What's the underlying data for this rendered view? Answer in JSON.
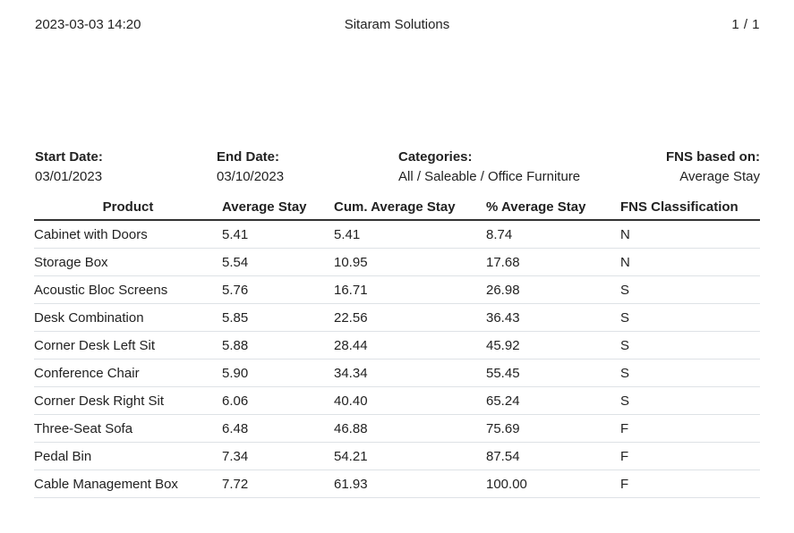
{
  "header": {
    "datetime": "2023-03-03 14:20",
    "company": "Sitaram Solutions",
    "page_indicator": "1 / 1"
  },
  "filters": {
    "start_date_label": "Start Date:",
    "start_date_value": "03/01/2023",
    "end_date_label": "End Date:",
    "end_date_value": "03/10/2023",
    "categories_label": "Categories:",
    "categories_value": "All / Saleable / Office Furniture",
    "fns_label": "FNS based on:",
    "fns_value": "Average Stay"
  },
  "table": {
    "columns": [
      "Product",
      "Average Stay",
      "Cum. Average Stay",
      "% Average Stay",
      "FNS Classification"
    ],
    "rows": [
      [
        "Cabinet with Doors",
        "5.41",
        "5.41",
        "8.74",
        "N"
      ],
      [
        "Storage Box",
        "5.54",
        "10.95",
        "17.68",
        "N"
      ],
      [
        "Acoustic Bloc Screens",
        "5.76",
        "16.71",
        "26.98",
        "S"
      ],
      [
        "Desk Combination",
        "5.85",
        "22.56",
        "36.43",
        "S"
      ],
      [
        "Corner Desk Left Sit",
        "5.88",
        "28.44",
        "45.92",
        "S"
      ],
      [
        "Conference Chair",
        "5.90",
        "34.34",
        "55.45",
        "S"
      ],
      [
        "Corner Desk Right Sit",
        "6.06",
        "40.40",
        "65.24",
        "S"
      ],
      [
        "Three-Seat Sofa",
        "6.48",
        "46.88",
        "75.69",
        "F"
      ],
      [
        "Pedal Bin",
        "7.34",
        "54.21",
        "87.54",
        "F"
      ],
      [
        "Cable Management Box",
        "7.72",
        "61.93",
        "100.00",
        "F"
      ]
    ]
  }
}
